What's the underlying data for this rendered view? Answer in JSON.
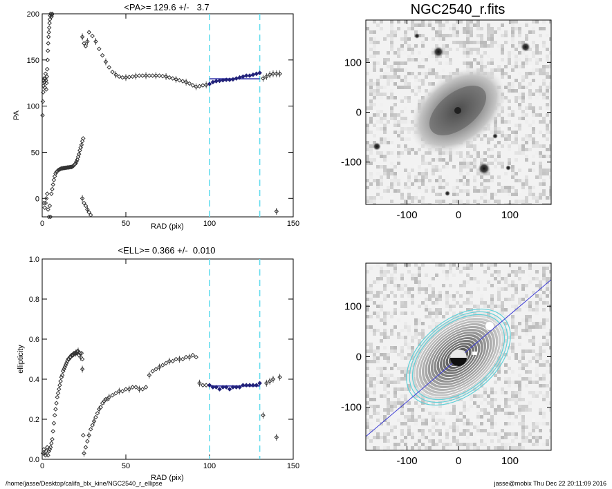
{
  "footer": {
    "path": "/home/jasse/Desktop/califa_blx_kine/NGC2540_r_ellipse",
    "stamp": "jasse@mobix  Thu Dec 22 20:11:09 2016"
  },
  "colors": {
    "marker": "#333333",
    "fit_marker": "#22227a",
    "mean_line": "#1a1aa0",
    "limit_lines": "#66ddee",
    "model_ellipses_outer": "#5fd0d8",
    "model_ellipses_inner": "#ffffff",
    "pa_line": "#3b3bd6"
  },
  "chart_data": [
    {
      "type": "scatter",
      "title": "<PA>= 129.6 +/-   3.7",
      "xlabel": "RAD (pix)",
      "ylabel": "PA",
      "xlim": [
        0,
        150
      ],
      "ylim": [
        -20,
        200
      ],
      "xticks": [
        0,
        50,
        100,
        150
      ],
      "yticks": [
        0,
        50,
        100,
        150,
        200
      ],
      "grid": false,
      "fit_range": [
        100,
        130
      ],
      "mean_value": 129.6,
      "error_value": 3.7,
      "series": [
        {
          "x": [
            0.2,
            0.4,
            0.6,
            0.8,
            1.0,
            1.2,
            1.4,
            1.6,
            1.8,
            2.0,
            2.2,
            2.4,
            2.6,
            2.8,
            3.0,
            3.2,
            3.4,
            3.6,
            3.8,
            4.0,
            4.2,
            4.4,
            4.6,
            4.8,
            5.0,
            5.2,
            5.4,
            5.6,
            5.8,
            6.0,
            6.3,
            6.6,
            6.9,
            7.2,
            7.5,
            7.8
          ],
          "y": [
            90,
            105,
            115,
            122,
            128,
            130,
            126,
            120,
            130,
            135,
            128,
            118,
            125,
            132,
            140,
            150,
            160,
            168,
            175,
            180,
            185,
            190,
            194,
            198,
            200,
            201,
            199,
            197,
            199,
            200,
            202,
            204,
            205,
            206,
            207,
            208
          ]
        },
        {
          "x": [
            24,
            25,
            26,
            27,
            28,
            30,
            32,
            34,
            36,
            38,
            40,
            42,
            44,
            46,
            48,
            50,
            52,
            54,
            56,
            58,
            60,
            62,
            64,
            66,
            68,
            70,
            72,
            74,
            76,
            78,
            80,
            82,
            84,
            86,
            88,
            90,
            92,
            94,
            96,
            98
          ],
          "y": [
            175,
            168,
            165,
            170,
            180,
            176,
            170,
            162,
            155,
            148,
            142,
            137,
            134,
            132,
            131,
            131,
            131.5,
            132,
            132.5,
            133,
            133,
            133,
            133,
            133,
            133,
            133,
            132.5,
            132,
            131,
            130,
            129,
            128,
            127,
            126,
            124.5,
            122.5,
            121,
            121.5,
            122.5,
            123
          ]
        },
        {
          "x": [
            100,
            102,
            104,
            106,
            108,
            110,
            112,
            114,
            116,
            118,
            120,
            122,
            124,
            126,
            128,
            130
          ],
          "y": [
            124,
            126,
            127,
            127.5,
            128,
            128.5,
            128.5,
            129,
            130,
            131,
            132,
            133,
            133,
            134,
            135,
            136
          ]
        },
        {
          "x": [
            132,
            134,
            136,
            138,
            140,
            142
          ],
          "y": [
            130,
            132,
            134,
            135,
            135,
            135
          ]
        },
        {
          "x": [
            1,
            1.5,
            2,
            2.5,
            3,
            3.5,
            4,
            4.5,
            5,
            5.5,
            6,
            6.5,
            7,
            7.5,
            8,
            8.5,
            9,
            9.5,
            10,
            10.5,
            11,
            11.5,
            12,
            12.5,
            13,
            13.5,
            14,
            14.5,
            15,
            15.5,
            16,
            16.5,
            17,
            17.5,
            18,
            18.5,
            19,
            19.5,
            20,
            20.5,
            21,
            21.5,
            22,
            22.5,
            23,
            23.5,
            24,
            24.5
          ],
          "y": [
            -5,
            -10,
            -5,
            0,
            5,
            -12,
            -20,
            -8,
            -20,
            5,
            10,
            15,
            20,
            24,
            27,
            28.5,
            29.5,
            30.5,
            31,
            31.5,
            32,
            32.5,
            32.5,
            32.8,
            33,
            33,
            33.2,
            33.3,
            33.5,
            33.5,
            33.6,
            33.8,
            34,
            34,
            34.5,
            35,
            36,
            37,
            38,
            40,
            42,
            45,
            48,
            52,
            55,
            58,
            62,
            65
          ]
        },
        {
          "x": [
            24,
            25,
            26,
            27,
            28,
            29,
            30,
            31,
            32
          ],
          "y": [
            0,
            -5,
            -8,
            -12,
            -15,
            -18,
            -22,
            -22,
            -22
          ]
        },
        {
          "x": [
            140
          ],
          "y": [
            -14
          ]
        }
      ]
    },
    {
      "type": "scatter",
      "title": "<ELL>= 0.366 +/-  0.010",
      "xlabel": "RAD (pix)",
      "ylabel": "ellipticity",
      "xlim": [
        0,
        150
      ],
      "ylim": [
        0,
        1
      ],
      "xticks": [
        0,
        50,
        100,
        150
      ],
      "yticks": [
        0.0,
        0.2,
        0.4,
        0.6,
        0.8,
        1.0
      ],
      "grid": false,
      "fit_range": [
        100,
        130
      ],
      "mean_value": 0.366,
      "error_value": 0.01,
      "series": [
        {
          "x": [
            0.5,
            1,
            1.5,
            2,
            2.5,
            3,
            3.5,
            4,
            4.5,
            5,
            5.5,
            6,
            6.5,
            7,
            7.5,
            8,
            8.5,
            9,
            9.5,
            10,
            10.5,
            11,
            11.5,
            12,
            12.5,
            13,
            13.5,
            14,
            14.5,
            15,
            15.5,
            16,
            16.5,
            17,
            17.5,
            18,
            18.5,
            19,
            19.5,
            20,
            20.5,
            21,
            21.5,
            22,
            22.5,
            23,
            23.5,
            24
          ],
          "y": [
            0.03,
            0.05,
            0.03,
            0.02,
            0.04,
            0.06,
            0.02,
            0.04,
            0.05,
            0.06,
            0.08,
            0.1,
            0.14,
            0.18,
            0.22,
            0.25,
            0.28,
            0.31,
            0.33,
            0.35,
            0.37,
            0.39,
            0.41,
            0.42,
            0.44,
            0.45,
            0.46,
            0.47,
            0.48,
            0.49,
            0.5,
            0.5,
            0.51,
            0.51,
            0.52,
            0.52,
            0.52,
            0.53,
            0.53,
            0.53,
            0.53,
            0.54,
            0.54,
            0.52,
            0.53,
            0.51,
            0.53,
            0.5
          ]
        },
        {
          "x": [
            24,
            24.5
          ],
          "y": [
            0.45,
            0.12
          ]
        },
        {
          "x": [
            25,
            26,
            27,
            28,
            29,
            30,
            31,
            32,
            33,
            34,
            35,
            36,
            37,
            38,
            39,
            40,
            42,
            44,
            46,
            48,
            50,
            52,
            54,
            56,
            58,
            60,
            62,
            64,
            66,
            68,
            70,
            72,
            74,
            76,
            78,
            80,
            82,
            84,
            86,
            88,
            90,
            92
          ],
          "y": [
            0.03,
            0.06,
            0.09,
            0.12,
            0.15,
            0.17,
            0.19,
            0.21,
            0.23,
            0.25,
            0.26,
            0.28,
            0.29,
            0.3,
            0.3,
            0.31,
            0.32,
            0.33,
            0.34,
            0.34,
            0.35,
            0.35,
            0.36,
            0.36,
            0.35,
            0.35,
            0.36,
            0.42,
            0.44,
            0.45,
            0.46,
            0.47,
            0.48,
            0.49,
            0.49,
            0.5,
            0.5,
            0.5,
            0.51,
            0.51,
            0.52,
            0.51
          ]
        },
        {
          "x": [
            94,
            96,
            98
          ],
          "y": [
            0.38,
            0.37,
            0.37
          ]
        },
        {
          "x": [
            100,
            102,
            104,
            106,
            108,
            110,
            112,
            114,
            116,
            118,
            120,
            122,
            124,
            126,
            128,
            130
          ],
          "y": [
            0.37,
            0.36,
            0.36,
            0.35,
            0.36,
            0.36,
            0.35,
            0.36,
            0.36,
            0.36,
            0.37,
            0.37,
            0.37,
            0.37,
            0.37,
            0.38
          ]
        },
        {
          "x": [
            132,
            134,
            136,
            138,
            140,
            142
          ],
          "y": [
            0.22,
            0.38,
            0.39,
            0.4,
            0.11,
            0.41
          ]
        }
      ]
    },
    {
      "type": "heatmap",
      "title": "NGC2540_r.fits",
      "xlim": [
        -180,
        180
      ],
      "ylim": [
        -185,
        185
      ],
      "xticks": [
        -100,
        0,
        100
      ],
      "yticks": [
        -100,
        0,
        100
      ],
      "grid": false
    },
    {
      "type": "heatmap",
      "title": "",
      "xlim": [
        -180,
        180
      ],
      "ylim": [
        -185,
        185
      ],
      "xticks": [
        -100,
        0,
        100
      ],
      "yticks": [
        -100,
        0,
        100
      ],
      "grid": false
    }
  ]
}
